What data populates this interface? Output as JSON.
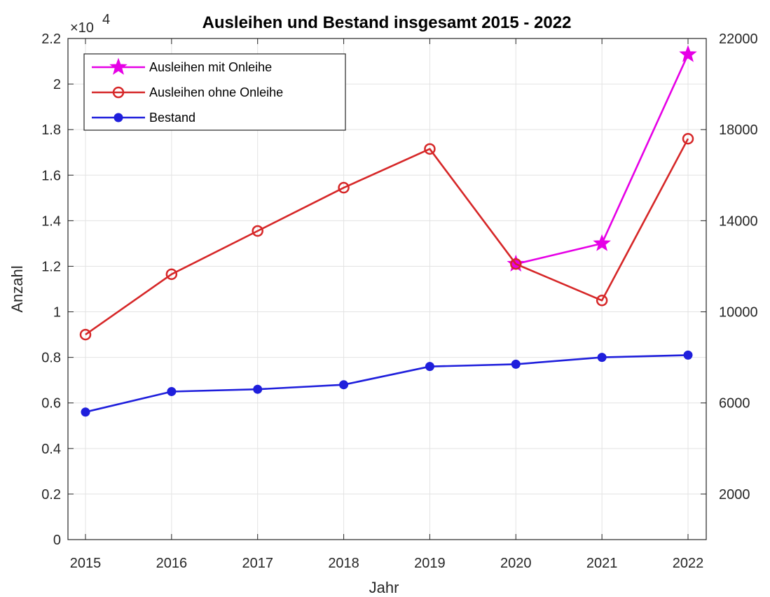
{
  "chart_data": {
    "type": "line",
    "title": "Ausleihen und Bestand insgesamt 2015 - 2022",
    "xlabel": "Jahr",
    "ylabel": "Anzahl",
    "y_exponent_label": "×10",
    "y_exponent_power": "4",
    "x": [
      "2015",
      "2016",
      "2017",
      "2018",
      "2019",
      "2020",
      "2021",
      "2022"
    ],
    "ylim": [
      0,
      22000
    ],
    "y_ticks": [
      "0",
      "0.2",
      "0.4",
      "0.6",
      "0.8",
      "1",
      "1.2",
      "1.4",
      "1.6",
      "1.8",
      "2",
      "2.2"
    ],
    "y_tick_values": [
      0,
      2000,
      4000,
      6000,
      8000,
      10000,
      12000,
      14000,
      16000,
      18000,
      20000,
      22000
    ],
    "y2_ticks": [
      "2000",
      "6000",
      "10000",
      "14000",
      "18000",
      "22000"
    ],
    "y2_tick_values": [
      2000,
      6000,
      10000,
      14000,
      18000,
      22000
    ],
    "grid": true,
    "legend_position": "top-left",
    "series": [
      {
        "name": "Ausleihen mit Onleihe",
        "color": "#e600e6",
        "marker": "star",
        "values": [
          null,
          null,
          null,
          null,
          null,
          12100,
          13000,
          21300
        ]
      },
      {
        "name": "Ausleihen ohne Onleihe",
        "color": "#d62728",
        "marker": "circle-open",
        "values": [
          9000,
          11650,
          13550,
          15450,
          17150,
          12100,
          10500,
          17600
        ]
      },
      {
        "name": "Bestand",
        "color": "#1f1fdc",
        "marker": "dot",
        "values": [
          5600,
          6500,
          6600,
          6800,
          7600,
          7700,
          8000,
          8100
        ]
      }
    ]
  }
}
